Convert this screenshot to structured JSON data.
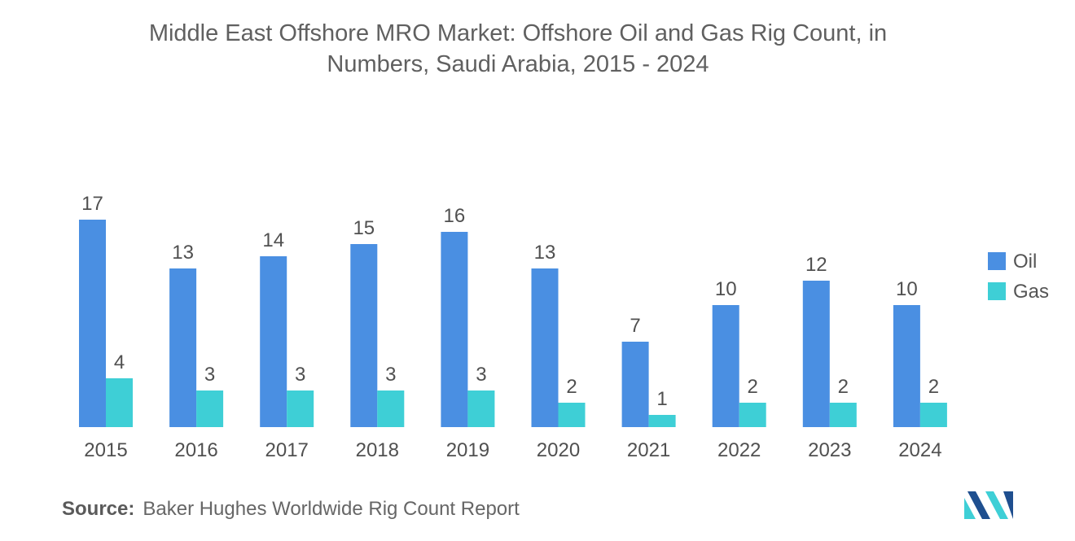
{
  "title": {
    "line1": "Middle East Offshore MRO Market: Offshore Oil and Gas Rig Count, in",
    "line2": "Numbers, Saudi Arabia, 2015 - 2024"
  },
  "source": {
    "label": "Source:",
    "text": "Baker Hughes Worldwide Rig Count Report"
  },
  "chart_data": {
    "type": "bar",
    "title": "Middle East Offshore MRO Market: Offshore Oil and Gas Rig Count, in Numbers, Saudi Arabia, 2015 - 2024",
    "xlabel": "",
    "ylabel": "",
    "categories": [
      "2015",
      "2016",
      "2017",
      "2018",
      "2019",
      "2020",
      "2021",
      "2022",
      "2023",
      "2024"
    ],
    "series": [
      {
        "name": "Oil",
        "color": "#4a8fe2",
        "values": [
          17,
          13,
          14,
          15,
          16,
          13,
          7,
          10,
          12,
          10
        ]
      },
      {
        "name": "Gas",
        "color": "#3ecfd6",
        "values": [
          4,
          3,
          3,
          3,
          3,
          2,
          1,
          2,
          2,
          2
        ]
      }
    ],
    "ylim": [
      0,
      17
    ],
    "grid": false,
    "legend": "right",
    "data_labels": true
  }
}
